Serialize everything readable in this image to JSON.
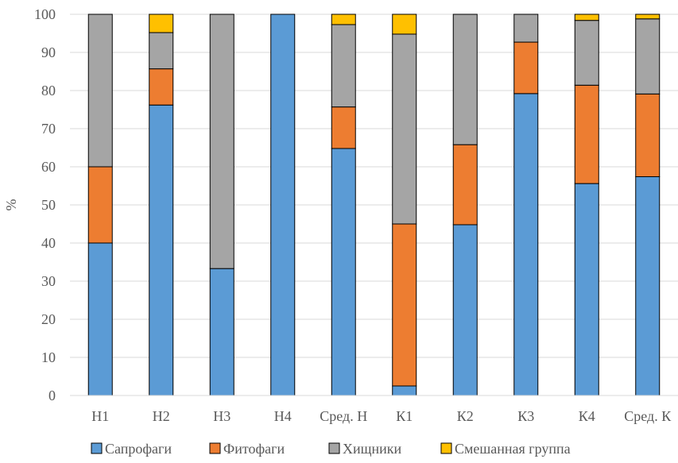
{
  "chart_data": {
    "type": "bar",
    "stacked": true,
    "categories": [
      "Н1",
      "Н2",
      "Н3",
      "Н4",
      "Сред. Н",
      "К1",
      "К2",
      "К3",
      "К4",
      "Сред. К"
    ],
    "series": [
      {
        "name": "Сапрофаги",
        "color": "#5B9BD5",
        "values": [
          40,
          76.2,
          33.3,
          100,
          64.8,
          2.5,
          44.8,
          79.2,
          55.6,
          57.4
        ]
      },
      {
        "name": "Фитофаги",
        "color": "#ED7D31",
        "values": [
          20,
          9.5,
          0,
          0,
          10.9,
          42.5,
          21,
          13.5,
          25.8,
          21.7
        ]
      },
      {
        "name": "Хищники",
        "color": "#A5A5A5",
        "values": [
          40,
          9.5,
          66.7,
          0,
          21.6,
          49.8,
          34.2,
          7.3,
          17,
          19.7
        ]
      },
      {
        "name": "Смешанная группа",
        "color": "#FFC000",
        "values": [
          0,
          4.8,
          0,
          0,
          2.7,
          5.2,
          0,
          0,
          1.6,
          1.2
        ]
      }
    ],
    "ylabel": "%",
    "xlabel": "",
    "title": "",
    "ylim": [
      0,
      100
    ],
    "yticks": [
      0,
      10,
      20,
      30,
      40,
      50,
      60,
      70,
      80,
      90,
      100
    ],
    "grid": true,
    "legend": "bottom"
  }
}
